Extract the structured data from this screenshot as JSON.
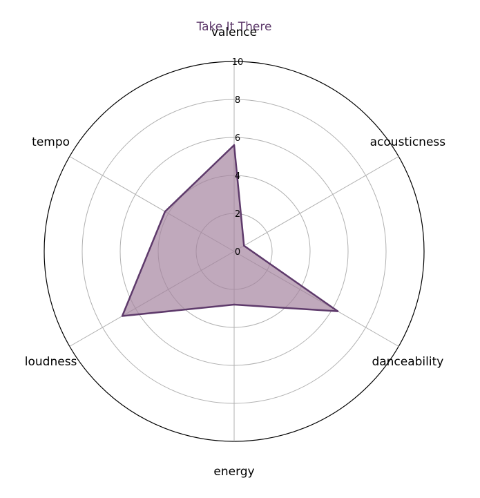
{
  "chart_data": {
    "type": "radar",
    "title": "Take It There",
    "axes": [
      "valence",
      "acousticness",
      "danceability",
      "energy",
      "loudness",
      "tempo"
    ],
    "series": [
      {
        "values": [
          5.6,
          0.6,
          6.3,
          2.8,
          6.8,
          4.2
        ]
      }
    ],
    "rlim": [
      0,
      10
    ],
    "r_ticks": [
      "0",
      "2",
      "4",
      "6",
      "8",
      "10"
    ],
    "grid": true,
    "colors": {
      "series_line": "#5e3a6b",
      "series_fill": "#a584a0",
      "title": "#5e3a6b",
      "grid": "#b0b0b0",
      "outer_circle": "#000000"
    }
  }
}
